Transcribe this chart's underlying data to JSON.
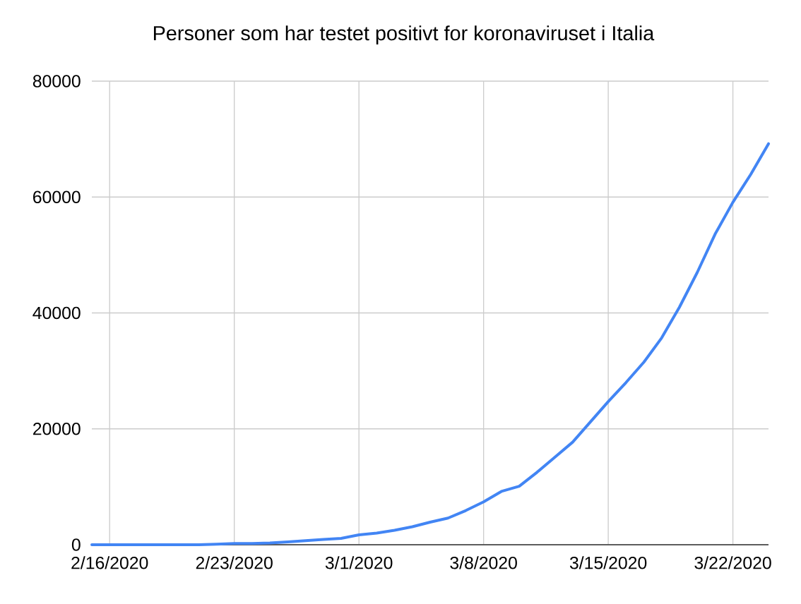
{
  "chart_data": {
    "type": "line",
    "title": "Personer som har testet positivt for koronaviruset i Italia",
    "x": [
      "2020-02-15",
      "2020-02-16",
      "2020-02-17",
      "2020-02-18",
      "2020-02-19",
      "2020-02-20",
      "2020-02-21",
      "2020-02-22",
      "2020-02-23",
      "2020-02-24",
      "2020-02-25",
      "2020-02-26",
      "2020-02-27",
      "2020-02-28",
      "2020-02-29",
      "2020-03-01",
      "2020-03-02",
      "2020-03-03",
      "2020-03-04",
      "2020-03-05",
      "2020-03-06",
      "2020-03-07",
      "2020-03-08",
      "2020-03-09",
      "2020-03-10",
      "2020-03-11",
      "2020-03-12",
      "2020-03-13",
      "2020-03-14",
      "2020-03-15",
      "2020-03-16",
      "2020-03-17",
      "2020-03-18",
      "2020-03-19",
      "2020-03-20",
      "2020-03-21",
      "2020-03-22",
      "2020-03-23",
      "2020-03-24"
    ],
    "series": [
      {
        "color": "#4285f4",
        "values": [
          0,
          0,
          0,
          0,
          0,
          0,
          0,
          100,
          200,
          200,
          300,
          500,
          700,
          900,
          1100,
          1700,
          2000,
          2500,
          3100,
          3900,
          4600,
          5900,
          7400,
          9200,
          10100,
          12500,
          15100,
          17700,
          21200,
          24700,
          28000,
          31500,
          35700,
          41000,
          47000,
          53600,
          59100,
          63900,
          69200
        ]
      }
    ],
    "xlim": [
      "2020-02-15",
      "2020-03-24"
    ],
    "xticks": [
      {
        "value": "2020-02-16",
        "label": "2/16/2020"
      },
      {
        "value": "2020-02-23",
        "label": "2/23/2020"
      },
      {
        "value": "2020-03-01",
        "label": "3/1/2020"
      },
      {
        "value": "2020-03-08",
        "label": "3/8/2020"
      },
      {
        "value": "2020-03-15",
        "label": "3/15/2020"
      },
      {
        "value": "2020-03-22",
        "label": "3/22/2020"
      }
    ],
    "ylim": [
      0,
      80000
    ],
    "yticks": [
      0,
      20000,
      40000,
      60000,
      80000
    ],
    "grid": true
  }
}
